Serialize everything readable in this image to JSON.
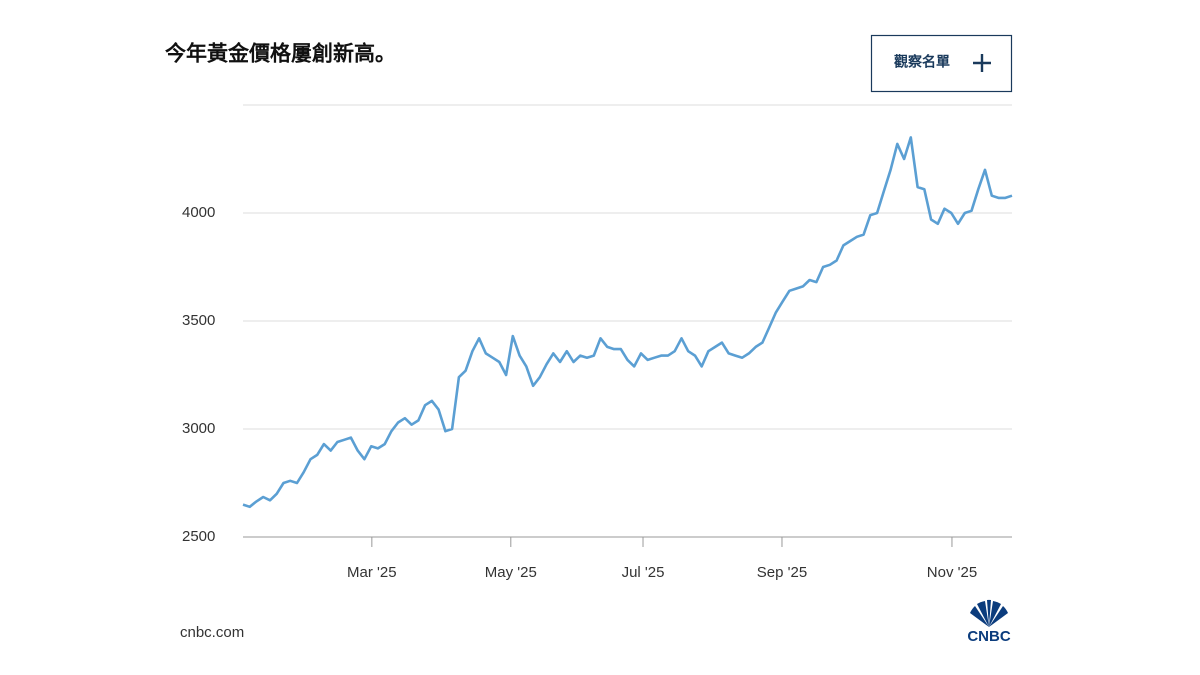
{
  "chart_data": {
    "type": "line",
    "title": "今年黃金價格屢創新高。",
    "button_label": "觀察名單",
    "source": "cnbc.com",
    "logo": "CNBC",
    "color": "#5b9fd3",
    "grid": true,
    "xlim": [
      0,
      114
    ],
    "xticks": [
      {
        "value": 19.1,
        "label": "Mar '25"
      },
      {
        "value": 39.7,
        "label": "May '25"
      },
      {
        "value": 59.3,
        "label": "Jul '25"
      },
      {
        "value": 79.9,
        "label": "Sep '25"
      },
      {
        "value": 105.1,
        "label": "Nov '25"
      }
    ],
    "ylim": [
      2500,
      4500
    ],
    "yticks": [
      2500,
      3000,
      3500,
      4000
    ],
    "values": [
      2650,
      2640,
      2665,
      2685,
      2670,
      2700,
      2750,
      2760,
      2750,
      2800,
      2860,
      2880,
      2930,
      2900,
      2940,
      2950,
      2960,
      2900,
      2860,
      2920,
      2910,
      2930,
      2990,
      3030,
      3050,
      3020,
      3040,
      3110,
      3130,
      3090,
      2990,
      3000,
      3240,
      3270,
      3360,
      3420,
      3350,
      3330,
      3310,
      3250,
      3430,
      3340,
      3290,
      3200,
      3240,
      3300,
      3350,
      3310,
      3360,
      3310,
      3340,
      3330,
      3340,
      3420,
      3380,
      3370,
      3370,
      3320,
      3290,
      3350,
      3320,
      3330,
      3340,
      3340,
      3360,
      3420,
      3360,
      3340,
      3290,
      3360,
      3380,
      3400,
      3350,
      3340,
      3330,
      3350,
      3380,
      3400,
      3470,
      3540,
      3590,
      3640,
      3650,
      3660,
      3690,
      3680,
      3750,
      3760,
      3780,
      3850,
      3870,
      3890,
      3900,
      3990,
      4000,
      4100,
      4200,
      4320,
      4250,
      4350,
      4120,
      4110,
      3970,
      3950,
      4020,
      4000,
      3950,
      4000,
      4010,
      4110,
      4200,
      4080,
      4070,
      4070,
      4080
    ]
  }
}
